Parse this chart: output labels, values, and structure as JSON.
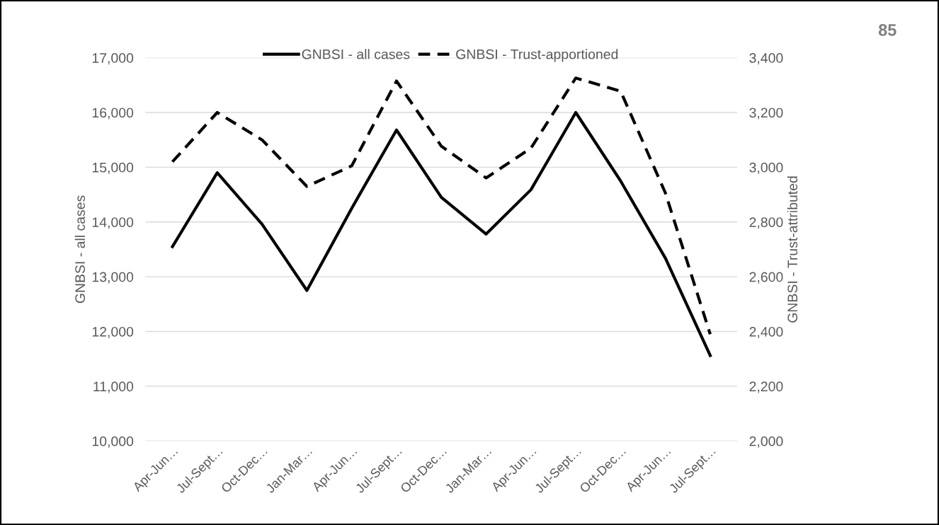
{
  "chart_data": {
    "type": "line",
    "categories": [
      "Apr-Jun…",
      "Jul-Sept…",
      "Oct-Dec…",
      "Jan-Mar…",
      "Apr-Jun…",
      "Jul-Sept…",
      "Oct-Dec…",
      "Jan-Mar…",
      "Apr-Jun…",
      "Jul-Sept…",
      "Oct-Dec…",
      "Apr-Jun…",
      "Jul-Sept…"
    ],
    "series": [
      {
        "name": "GNBSI - all cases",
        "color": "#000000",
        "line_style": "solid",
        "values": [
          13550,
          14900,
          13960,
          12750,
          14250,
          15680,
          14450,
          13780,
          14590,
          16000,
          14750,
          13340,
          11560
        ]
      },
      {
        "name": "GNBSI - Trust-apportioned",
        "color": "#000000",
        "line_style": "dashed",
        "axis": "y2",
        "values": [
          3020,
          3200,
          3100,
          2930,
          3005,
          3315,
          3077,
          2961,
          3070,
          3326,
          3278,
          2906,
          2390
        ]
      }
    ],
    "ylabel": "GNBSI - all cases",
    "y2label": "GNBSI - Trust-attributed",
    "ylim": [
      10000,
      17000
    ],
    "yticks": [
      {
        "value": 10000,
        "label": "10,000"
      },
      {
        "value": 11000,
        "label": "11,000"
      },
      {
        "value": 12000,
        "label": "12,000"
      },
      {
        "value": 13000,
        "label": "13,000"
      },
      {
        "value": 14000,
        "label": "14,000"
      },
      {
        "value": 15000,
        "label": "15,000"
      },
      {
        "value": 16000,
        "label": "16,000"
      },
      {
        "value": 17000,
        "label": "17,000"
      }
    ],
    "y2lim": [
      2000,
      3400
    ],
    "y2ticks": [
      {
        "value": 2000,
        "label": "2,000"
      },
      {
        "value": 2200,
        "label": "2,200"
      },
      {
        "value": 2400,
        "label": "2,400"
      },
      {
        "value": 2600,
        "label": "2,600"
      },
      {
        "value": 2800,
        "label": "2,800"
      },
      {
        "value": 3000,
        "label": "3,000"
      },
      {
        "value": 3200,
        "label": "3,200"
      },
      {
        "value": 3400,
        "label": "3,400"
      }
    ],
    "grid": "y",
    "legend": "top",
    "marker": "none",
    "annotations": [
      "85"
    ]
  }
}
